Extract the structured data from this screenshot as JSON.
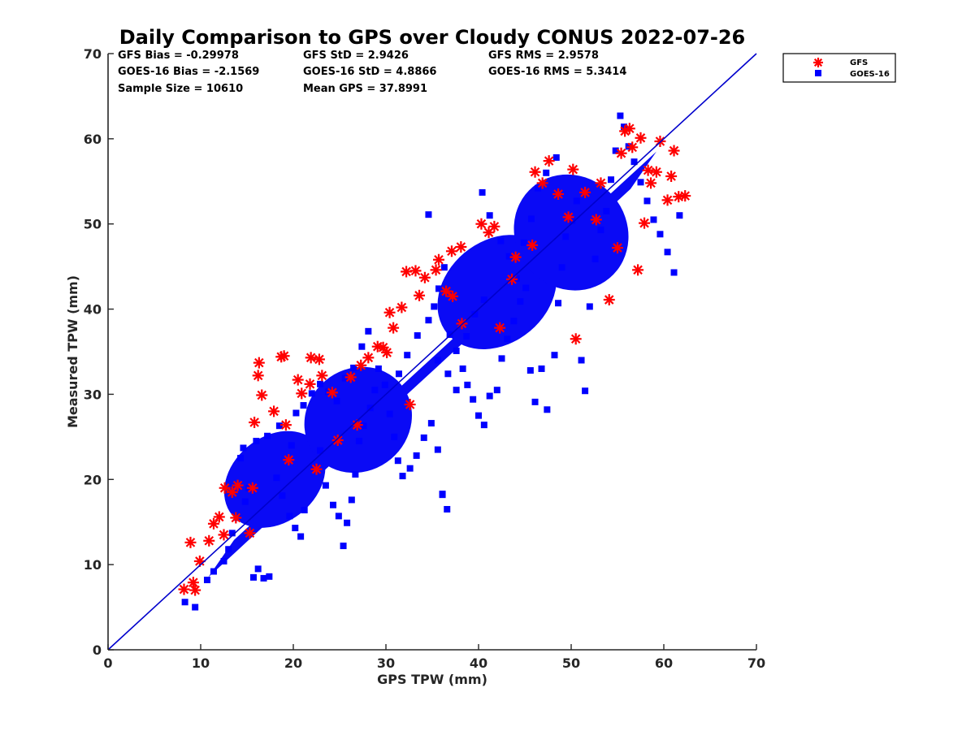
{
  "chart_data": {
    "type": "scatter",
    "title": "Daily Comparison to GPS over Cloudy CONUS 2022-07-26",
    "xlabel": "GPS TPW (mm)",
    "ylabel": "Measured TPW (mm)",
    "xlim": [
      0,
      70
    ],
    "ylim": [
      0,
      70
    ],
    "xticks": [
      "0",
      "10",
      "20",
      "30",
      "40",
      "50",
      "60",
      "70"
    ],
    "yticks": [
      "0",
      "10",
      "20",
      "30",
      "40",
      "50",
      "60",
      "70"
    ],
    "grid": false,
    "legend_position": "outside top-right",
    "stats": [
      [
        "GFS Bias = -0.29978",
        "GFS StD = 2.9426",
        "GFS RMS = 2.9578"
      ],
      [
        "GOES-16 Bias = -2.1569",
        "GOES-16 StD = 4.8866",
        "GOES-16 RMS = 5.3414"
      ],
      [
        "Sample Size = 10610",
        "Mean GPS = 37.8991"
      ]
    ],
    "reference_line": {
      "name": "1:1",
      "color": "#0000cc",
      "points": [
        [
          0,
          0
        ],
        [
          70,
          70
        ]
      ]
    },
    "series": [
      {
        "name": "GOES-16",
        "marker": "square",
        "color": "#0000ff",
        "points": [
          [
            8.3,
            5.6
          ],
          [
            9.4,
            5.0
          ],
          [
            10.7,
            8.2
          ],
          [
            11.4,
            9.2
          ],
          [
            12.5,
            10.4
          ],
          [
            13.0,
            11.8
          ],
          [
            13.4,
            13.7
          ],
          [
            14.0,
            15.5
          ],
          [
            14.8,
            17.4
          ],
          [
            15.2,
            19.0
          ],
          [
            15.7,
            8.5
          ],
          [
            16.2,
            9.5
          ],
          [
            16.8,
            8.4
          ],
          [
            17.4,
            8.6
          ],
          [
            14.3,
            22.5
          ],
          [
            14.6,
            23.7
          ],
          [
            16.0,
            24.5
          ],
          [
            17.2,
            25.1
          ],
          [
            18.5,
            26.3
          ],
          [
            19.8,
            24.0
          ],
          [
            18.2,
            20.2
          ],
          [
            18.8,
            18.1
          ],
          [
            19.6,
            15.7
          ],
          [
            20.2,
            14.3
          ],
          [
            20.8,
            13.3
          ],
          [
            21.2,
            16.4
          ],
          [
            22.2,
            21.3
          ],
          [
            22.9,
            23.4
          ],
          [
            23.5,
            19.3
          ],
          [
            24.3,
            17.0
          ],
          [
            24.9,
            15.7
          ],
          [
            25.4,
            12.2
          ],
          [
            25.8,
            14.9
          ],
          [
            26.3,
            17.6
          ],
          [
            26.7,
            20.6
          ],
          [
            27.1,
            24.5
          ],
          [
            27.6,
            26.3
          ],
          [
            28.3,
            28.4
          ],
          [
            28.8,
            30.5
          ],
          [
            29.2,
            33.0
          ],
          [
            29.9,
            31.1
          ],
          [
            30.4,
            27.7
          ],
          [
            30.9,
            25.0
          ],
          [
            31.3,
            22.2
          ],
          [
            31.8,
            20.4
          ],
          [
            32.6,
            21.3
          ],
          [
            33.3,
            22.8
          ],
          [
            34.1,
            24.9
          ],
          [
            34.9,
            26.6
          ],
          [
            35.6,
            23.5
          ],
          [
            36.1,
            18.2
          ],
          [
            36.6,
            16.5
          ],
          [
            36.1,
            18.3
          ],
          [
            35.2,
            40.3
          ],
          [
            35.7,
            42.4
          ],
          [
            36.3,
            44.9
          ],
          [
            34.6,
            51.1
          ],
          [
            36.9,
            37.0
          ],
          [
            37.6,
            35.1
          ],
          [
            38.3,
            33.0
          ],
          [
            38.8,
            31.1
          ],
          [
            39.4,
            29.4
          ],
          [
            40.0,
            27.5
          ],
          [
            40.6,
            26.4
          ],
          [
            41.2,
            29.8
          ],
          [
            42.0,
            30.5
          ],
          [
            42.5,
            34.2
          ],
          [
            43.1,
            36.5
          ],
          [
            43.8,
            38.6
          ],
          [
            44.5,
            40.9
          ],
          [
            45.1,
            42.5
          ],
          [
            45.6,
            32.8
          ],
          [
            46.1,
            29.1
          ],
          [
            46.8,
            33.0
          ],
          [
            47.4,
            28.2
          ],
          [
            48.2,
            34.6
          ],
          [
            48.6,
            40.7
          ],
          [
            49.0,
            44.9
          ],
          [
            49.4,
            48.5
          ],
          [
            50.1,
            50.4
          ],
          [
            50.6,
            52.7
          ],
          [
            51.1,
            34.0
          ],
          [
            51.5,
            30.4
          ],
          [
            52.0,
            40.3
          ],
          [
            52.6,
            45.9
          ],
          [
            53.2,
            49.3
          ],
          [
            53.8,
            51.5
          ],
          [
            54.3,
            55.2
          ],
          [
            54.8,
            58.6
          ],
          [
            55.3,
            62.7
          ],
          [
            55.7,
            61.4
          ],
          [
            56.2,
            59.1
          ],
          [
            56.8,
            57.3
          ],
          [
            57.5,
            54.9
          ],
          [
            58.2,
            52.7
          ],
          [
            58.9,
            50.5
          ],
          [
            59.6,
            48.8
          ],
          [
            60.4,
            46.7
          ],
          [
            61.1,
            44.3
          ],
          [
            61.7,
            51.0
          ],
          [
            40.4,
            53.7
          ],
          [
            41.2,
            51.0
          ],
          [
            42.4,
            48.0
          ],
          [
            43.3,
            46.2
          ],
          [
            44.1,
            43.6
          ],
          [
            44.9,
            47.8
          ],
          [
            45.7,
            50.6
          ],
          [
            46.4,
            54.2
          ],
          [
            47.3,
            56.0
          ],
          [
            48.4,
            57.8
          ],
          [
            20.3,
            27.8
          ],
          [
            21.1,
            28.7
          ],
          [
            22.0,
            30.1
          ],
          [
            22.9,
            31.2
          ],
          [
            23.8,
            30.3
          ],
          [
            24.7,
            29.2
          ],
          [
            25.6,
            31.9
          ],
          [
            26.5,
            33.1
          ],
          [
            27.4,
            35.6
          ],
          [
            28.1,
            37.4
          ],
          [
            31.4,
            32.4
          ],
          [
            32.3,
            34.6
          ],
          [
            33.4,
            36.9
          ],
          [
            34.6,
            38.7
          ],
          [
            35.6,
            34.0
          ],
          [
            36.7,
            32.4
          ],
          [
            37.6,
            30.5
          ],
          [
            38.7,
            36.8
          ],
          [
            39.6,
            39.4
          ],
          [
            40.6,
            41.1
          ]
        ]
      },
      {
        "name": "GFS",
        "marker": "asterisk",
        "color": "#ff0000",
        "points": [
          [
            8.2,
            7.1
          ],
          [
            9.2,
            7.9
          ],
          [
            9.4,
            7.0
          ],
          [
            8.9,
            12.6
          ],
          [
            9.9,
            10.4
          ],
          [
            10.9,
            12.8
          ],
          [
            11.4,
            14.8
          ],
          [
            12.0,
            15.6
          ],
          [
            12.5,
            13.5
          ],
          [
            12.6,
            19.0
          ],
          [
            13.4,
            18.5
          ],
          [
            14.0,
            19.3
          ],
          [
            15.3,
            13.7
          ],
          [
            15.8,
            26.7
          ],
          [
            16.3,
            33.7
          ],
          [
            16.2,
            32.2
          ],
          [
            16.6,
            29.9
          ],
          [
            17.9,
            28.0
          ],
          [
            18.7,
            34.4
          ],
          [
            19.0,
            34.5
          ],
          [
            19.2,
            26.4
          ],
          [
            20.5,
            31.7
          ],
          [
            20.9,
            30.1
          ],
          [
            21.8,
            31.2
          ],
          [
            21.9,
            34.3
          ],
          [
            22.8,
            34.1
          ],
          [
            23.1,
            32.2
          ],
          [
            24.2,
            30.2
          ],
          [
            26.2,
            32.0
          ],
          [
            27.3,
            33.4
          ],
          [
            28.1,
            34.3
          ],
          [
            29.1,
            35.6
          ],
          [
            29.7,
            35.5
          ],
          [
            30.1,
            34.9
          ],
          [
            30.4,
            39.6
          ],
          [
            30.8,
            37.8
          ],
          [
            31.7,
            40.2
          ],
          [
            32.2,
            44.4
          ],
          [
            33.2,
            44.5
          ],
          [
            33.6,
            41.6
          ],
          [
            34.2,
            43.7
          ],
          [
            35.4,
            44.6
          ],
          [
            35.7,
            45.8
          ],
          [
            36.5,
            42.1
          ],
          [
            37.2,
            41.5
          ],
          [
            37.1,
            46.8
          ],
          [
            38.1,
            47.3
          ],
          [
            40.3,
            50.0
          ],
          [
            41.1,
            49.0
          ],
          [
            41.7,
            49.7
          ],
          [
            42.3,
            37.8
          ],
          [
            44.0,
            46.1
          ],
          [
            45.8,
            47.5
          ],
          [
            46.1,
            56.1
          ],
          [
            46.9,
            54.8
          ],
          [
            47.6,
            57.4
          ],
          [
            48.6,
            53.5
          ],
          [
            49.7,
            50.8
          ],
          [
            50.2,
            56.4
          ],
          [
            50.5,
            36.5
          ],
          [
            51.5,
            53.7
          ],
          [
            52.7,
            50.5
          ],
          [
            53.2,
            54.8
          ],
          [
            54.1,
            41.1
          ],
          [
            55.0,
            47.2
          ],
          [
            55.4,
            58.3
          ],
          [
            55.8,
            60.9
          ],
          [
            56.3,
            61.2
          ],
          [
            56.6,
            59.0
          ],
          [
            57.2,
            44.6
          ],
          [
            57.5,
            60.1
          ],
          [
            57.9,
            50.1
          ],
          [
            58.3,
            56.3
          ],
          [
            58.6,
            54.8
          ],
          [
            59.2,
            56.1
          ],
          [
            59.6,
            59.7
          ],
          [
            60.4,
            52.8
          ],
          [
            60.8,
            55.6
          ],
          [
            61.1,
            58.6
          ],
          [
            61.6,
            53.2
          ],
          [
            62.3,
            53.3
          ],
          [
            24.8,
            24.6
          ],
          [
            22.5,
            21.2
          ],
          [
            19.5,
            22.3
          ],
          [
            15.6,
            19.0
          ],
          [
            13.8,
            15.5
          ],
          [
            26.9,
            26.4
          ],
          [
            32.6,
            28.8
          ],
          [
            38.2,
            38.3
          ],
          [
            43.6,
            43.5
          ]
        ]
      }
    ]
  }
}
